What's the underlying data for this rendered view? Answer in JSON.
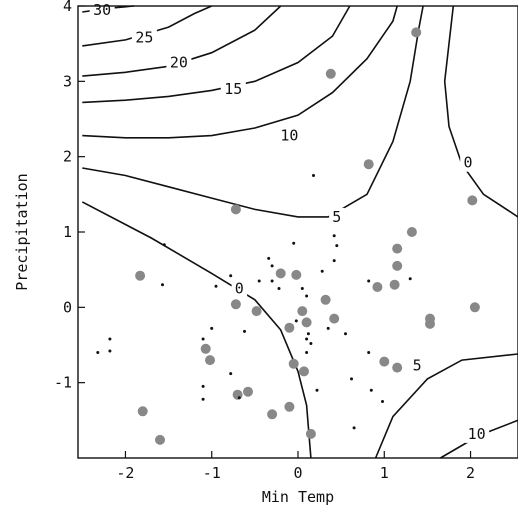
{
  "chart_data": {
    "type": "scatter",
    "title": "",
    "xlabel": "Min Temp",
    "ylabel": "Precipitation",
    "xlim": [
      -2.55,
      2.55
    ],
    "ylim": [
      -2.0,
      4.0
    ],
    "x_ticks": [
      -2,
      -1,
      0,
      1,
      2
    ],
    "x_tick_labels": [
      "-2",
      "-1",
      "0",
      "1",
      "2"
    ],
    "y_ticks": [
      -1,
      0,
      1,
      2,
      3,
      4
    ],
    "y_tick_labels": [
      "-1",
      "0",
      "1",
      "2",
      "3",
      "4"
    ],
    "grid": false,
    "contours": [
      {
        "level": "30",
        "label": "30",
        "points": [
          [
            -2.5,
            3.92
          ],
          [
            -2.2,
            3.97
          ],
          [
            -1.9,
            4.0
          ]
        ]
      },
      {
        "level": "25",
        "label": "25",
        "points": [
          [
            -2.5,
            3.47
          ],
          [
            -2.0,
            3.55
          ],
          [
            -1.5,
            3.72
          ],
          [
            -1.2,
            3.9
          ],
          [
            -1.0,
            4.0
          ]
        ]
      },
      {
        "level": "20",
        "label": "20",
        "points": [
          [
            -2.5,
            3.07
          ],
          [
            -2.0,
            3.12
          ],
          [
            -1.5,
            3.2
          ],
          [
            -1.0,
            3.38
          ],
          [
            -0.5,
            3.68
          ],
          [
            -0.2,
            4.0
          ]
        ]
      },
      {
        "level": "15",
        "label": "15",
        "points": [
          [
            -2.5,
            2.72
          ],
          [
            -2.0,
            2.75
          ],
          [
            -1.5,
            2.8
          ],
          [
            -1.0,
            2.88
          ],
          [
            -0.5,
            3.0
          ],
          [
            0.0,
            3.25
          ],
          [
            0.4,
            3.6
          ],
          [
            0.6,
            4.0
          ]
        ]
      },
      {
        "level": "10",
        "label": "10",
        "points": [
          [
            -2.5,
            2.28
          ],
          [
            -2.0,
            2.25
          ],
          [
            -1.5,
            2.25
          ],
          [
            -1.0,
            2.28
          ],
          [
            -0.5,
            2.38
          ],
          [
            0.0,
            2.55
          ],
          [
            0.4,
            2.85
          ],
          [
            0.8,
            3.3
          ],
          [
            1.1,
            3.8
          ],
          [
            1.15,
            4.0
          ]
        ]
      },
      {
        "level": "5",
        "label": "5",
        "points": [
          [
            -2.5,
            1.85
          ],
          [
            -2.0,
            1.75
          ],
          [
            -1.5,
            1.6
          ],
          [
            -1.0,
            1.45
          ],
          [
            -0.5,
            1.3
          ],
          [
            0.0,
            1.2
          ],
          [
            0.35,
            1.2
          ],
          [
            0.8,
            1.5
          ],
          [
            1.1,
            2.2
          ],
          [
            1.3,
            3.0
          ],
          [
            1.4,
            3.7
          ],
          [
            1.45,
            4.0
          ]
        ]
      },
      {
        "level": "0",
        "label": "0",
        "points": [
          [
            -2.5,
            1.4
          ],
          [
            -1.7,
            0.92
          ],
          [
            -1.0,
            0.45
          ],
          [
            -0.5,
            0.1
          ],
          [
            -0.2,
            -0.3
          ],
          [
            0.0,
            -0.85
          ],
          [
            0.1,
            -1.3
          ],
          [
            0.15,
            -2.0
          ]
        ]
      },
      {
        "level": "0",
        "label": "0",
        "points": [
          [
            1.8,
            4.0
          ],
          [
            1.75,
            3.5
          ],
          [
            1.7,
            3.0
          ],
          [
            1.75,
            2.4
          ],
          [
            1.9,
            1.9
          ],
          [
            2.15,
            1.5
          ],
          [
            2.55,
            1.2
          ]
        ]
      },
      {
        "level": "5",
        "label": "5",
        "points": [
          [
            0.9,
            -2.0
          ],
          [
            1.1,
            -1.45
          ],
          [
            1.5,
            -0.95
          ],
          [
            1.9,
            -0.7
          ],
          [
            2.55,
            -0.62
          ]
        ]
      },
      {
        "level": "10",
        "label": "10",
        "points": [
          [
            1.65,
            -2.0
          ],
          [
            2.1,
            -1.7
          ],
          [
            2.55,
            -1.5
          ]
        ]
      }
    ],
    "contour_label_positions": [
      {
        "label": "30",
        "x": -2.27,
        "y": 3.95
      },
      {
        "label": "25",
        "x": -1.78,
        "y": 3.58
      },
      {
        "label": "20",
        "x": -1.38,
        "y": 3.25
      },
      {
        "label": "15",
        "x": -0.75,
        "y": 2.9
      },
      {
        "label": "10",
        "x": -0.1,
        "y": 2.28
      },
      {
        "label": "5",
        "x": 0.45,
        "y": 1.2
      },
      {
        "label": "0",
        "x": -0.68,
        "y": 0.25
      },
      {
        "label": "0",
        "x": 1.97,
        "y": 1.92
      },
      {
        "label": "5",
        "x": 1.38,
        "y": -0.77
      },
      {
        "label": "10",
        "x": 2.07,
        "y": -1.68
      }
    ],
    "series": [
      {
        "marker": "large-gray-circle",
        "color": "#888888",
        "points": [
          [
            -1.83,
            0.42
          ],
          [
            -1.8,
            -1.38
          ],
          [
            -1.6,
            -1.76
          ],
          [
            -1.07,
            -0.55
          ],
          [
            -1.02,
            -0.7
          ],
          [
            -0.72,
            0.04
          ],
          [
            -0.72,
            1.3
          ],
          [
            -0.7,
            -1.16
          ],
          [
            -0.58,
            -1.12
          ],
          [
            -0.48,
            -0.05
          ],
          [
            -0.3,
            -1.42
          ],
          [
            -0.2,
            0.45
          ],
          [
            -0.1,
            -0.27
          ],
          [
            -0.05,
            -0.75
          ],
          [
            -0.1,
            -1.32
          ],
          [
            -0.02,
            0.43
          ],
          [
            0.05,
            -0.05
          ],
          [
            0.1,
            -0.2
          ],
          [
            0.07,
            -0.85
          ],
          [
            0.15,
            -1.68
          ],
          [
            0.32,
            0.1
          ],
          [
            0.38,
            3.1
          ],
          [
            0.42,
            -0.15
          ],
          [
            0.82,
            1.9
          ],
          [
            0.92,
            0.27
          ],
          [
            1.0,
            -0.72
          ],
          [
            1.15,
            -0.8
          ],
          [
            1.12,
            0.3
          ],
          [
            1.15,
            0.55
          ],
          [
            1.15,
            0.78
          ],
          [
            1.32,
            1.0
          ],
          [
            1.37,
            3.65
          ],
          [
            1.53,
            -0.15
          ],
          [
            1.53,
            -0.22
          ],
          [
            2.02,
            1.42
          ],
          [
            2.05,
            0.0
          ]
        ]
      },
      {
        "marker": "small-black-dot",
        "color": "#111111",
        "points": [
          [
            -2.32,
            -0.6
          ],
          [
            -2.18,
            -0.42
          ],
          [
            -2.18,
            -0.58
          ],
          [
            -1.55,
            0.83
          ],
          [
            -1.57,
            0.3
          ],
          [
            -1.1,
            -0.42
          ],
          [
            -1.1,
            -1.05
          ],
          [
            -1.1,
            -1.22
          ],
          [
            -1.0,
            -0.28
          ],
          [
            -0.95,
            0.28
          ],
          [
            -0.78,
            0.42
          ],
          [
            -0.78,
            -0.88
          ],
          [
            -0.68,
            -1.2
          ],
          [
            -0.62,
            -0.32
          ],
          [
            -0.45,
            0.35
          ],
          [
            -0.34,
            0.65
          ],
          [
            -0.3,
            0.55
          ],
          [
            -0.3,
            0.35
          ],
          [
            -0.22,
            0.25
          ],
          [
            -0.05,
            0.85
          ],
          [
            -0.02,
            -0.18
          ],
          [
            0.05,
            0.25
          ],
          [
            0.1,
            -0.42
          ],
          [
            0.1,
            -0.6
          ],
          [
            0.12,
            -0.35
          ],
          [
            0.15,
            -0.48
          ],
          [
            0.1,
            0.15
          ],
          [
            0.18,
            1.75
          ],
          [
            0.22,
            -1.1
          ],
          [
            0.28,
            0.48
          ],
          [
            0.35,
            -0.28
          ],
          [
            0.42,
            0.62
          ],
          [
            0.42,
            0.95
          ],
          [
            0.45,
            0.82
          ],
          [
            0.55,
            -0.35
          ],
          [
            0.62,
            -0.95
          ],
          [
            0.65,
            -1.6
          ],
          [
            0.82,
            0.35
          ],
          [
            0.82,
            -0.6
          ],
          [
            0.85,
            -1.1
          ],
          [
            0.98,
            -1.25
          ],
          [
            1.3,
            0.38
          ]
        ]
      }
    ]
  }
}
